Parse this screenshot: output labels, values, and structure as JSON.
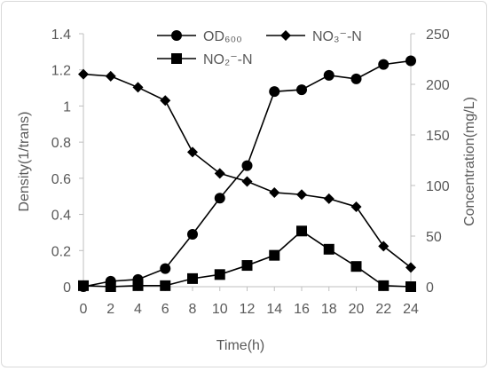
{
  "chart_data": {
    "type": "line",
    "title": "",
    "xlabel": "Time(h)",
    "ylabel": "Density(1/trans)",
    "y2label": "Concentration(mg/L)",
    "x": [
      0,
      2,
      4,
      6,
      8,
      10,
      12,
      14,
      16,
      18,
      20,
      22,
      24
    ],
    "x_ticks": [
      "0",
      "2",
      "4",
      "6",
      "8",
      "10",
      "12",
      "14",
      "16",
      "18",
      "20",
      "22",
      "24"
    ],
    "ylim": [
      0,
      1.4
    ],
    "y_ticks": [
      "0",
      "0.2",
      "0.4",
      "0.6",
      "0.8",
      "1",
      "1.2",
      "1.4"
    ],
    "y2lim": [
      0,
      250
    ],
    "y2_ticks": [
      "0",
      "50",
      "100",
      "150",
      "200",
      "250"
    ],
    "grid": false,
    "legend_position": "top",
    "series": [
      {
        "name": "OD₆₀₀",
        "axis": "left",
        "marker": "circle",
        "values": [
          0.0,
          0.03,
          0.04,
          0.1,
          0.29,
          0.49,
          0.67,
          1.08,
          1.09,
          1.17,
          1.15,
          1.23,
          1.25
        ]
      },
      {
        "name": "NO₃⁻-N",
        "axis": "right",
        "marker": "diamond",
        "values": [
          210,
          208,
          197,
          184,
          133,
          112,
          104,
          93,
          91,
          87,
          79,
          40,
          19
        ]
      },
      {
        "name": "NO₂⁻-N",
        "axis": "right",
        "marker": "square",
        "values": [
          1,
          0,
          1,
          1,
          8,
          12,
          21,
          31,
          55,
          37,
          20,
          1,
          0
        ]
      }
    ],
    "colors": {
      "line": "#000000",
      "text": "#595959",
      "axis": "#bfbfbf"
    }
  }
}
